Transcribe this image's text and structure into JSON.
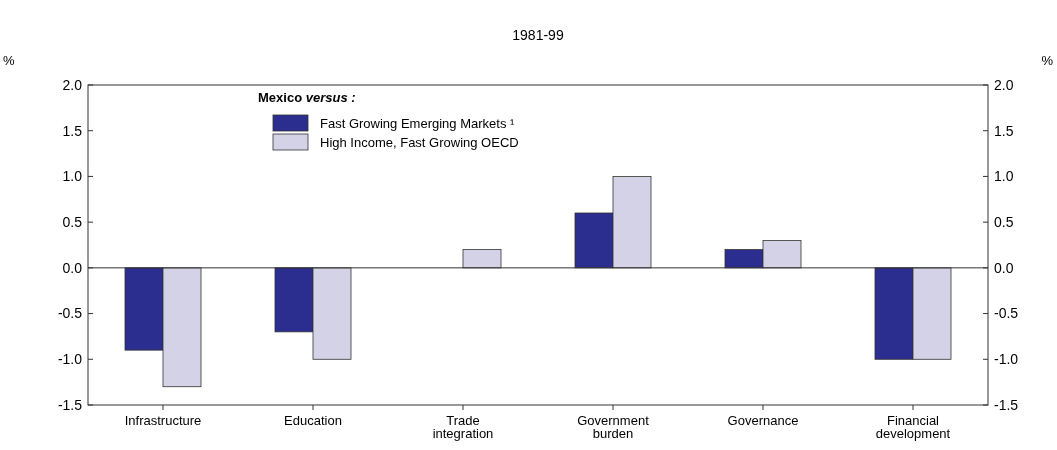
{
  "chart_data": {
    "type": "bar",
    "title": "1981-99",
    "ylabel": "%",
    "y2label": "%",
    "legend_title": "Mexico versus :",
    "categories": [
      "Infrastructure",
      "Education",
      "Trade integration",
      "Government burden",
      "Governance",
      "Financial development"
    ],
    "series": [
      {
        "name": "Fast Growing Emerging Markets ¹",
        "color": "#2b2e8f",
        "values": [
          -0.9,
          -0.7,
          0,
          0.6,
          0.2,
          -1.0
        ]
      },
      {
        "name": "High Income, Fast Growing OECD",
        "color": "#d4d2e6",
        "values": [
          -1.3,
          -1.0,
          0.2,
          1.0,
          0.3,
          -1.0
        ]
      }
    ],
    "ylim": [
      -1.5,
      2.0
    ],
    "yticks": [
      {
        "value": -1.5,
        "label": "-1.5"
      },
      {
        "value": -1.0,
        "label": "-1.0"
      },
      {
        "value": -0.5,
        "label": "-0.5"
      },
      {
        "value": 0,
        "label": "0.0"
      },
      {
        "value": 0.5,
        "label": "0.5"
      },
      {
        "value": 1.0,
        "label": "1.0"
      },
      {
        "value": 1.5,
        "label": "1.5"
      },
      {
        "value": 2.0,
        "label": "2.0"
      }
    ],
    "y2lim": [
      -1.5,
      2.0
    ],
    "y2ticks": [
      {
        "value": -1.5,
        "label": "-1.5"
      },
      {
        "value": -1.0,
        "label": "-1.0"
      },
      {
        "value": -0.5,
        "label": "-0.5"
      },
      {
        "value": 0,
        "label": "0.0"
      },
      {
        "value": 0.5,
        "label": "0.5"
      },
      {
        "value": 1.0,
        "label": "1.0"
      },
      {
        "value": 1.5,
        "label": "1.5"
      },
      {
        "value": 2.0,
        "label": "2.0"
      }
    ],
    "legend": "top left"
  }
}
